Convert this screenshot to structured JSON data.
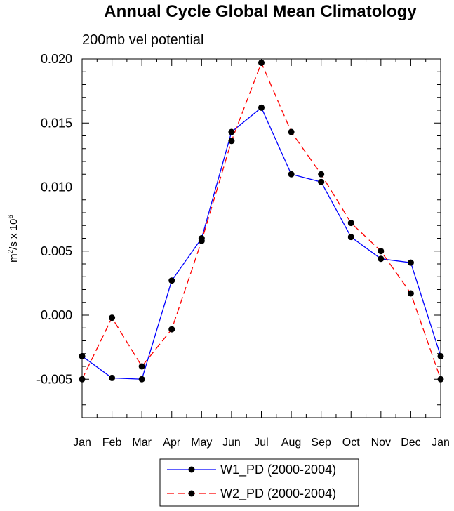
{
  "chart_data": {
    "type": "line",
    "title": "Annual Cycle Global Mean Climatology",
    "subtitle": "200mb vel potential",
    "xlabel": "",
    "ylabel": "m²/s x 10⁶",
    "ylabel_parts": {
      "base": "m",
      "exp1": "2",
      "mid": "/s x 10",
      "exp2": "6"
    },
    "ylim": [
      -0.008,
      0.02
    ],
    "yticks": [
      -0.005,
      0.0,
      0.005,
      0.01,
      0.015,
      0.02
    ],
    "ytick_labels": [
      "-0.005",
      "0.000",
      "0.005",
      "0.010",
      "0.015",
      "0.020"
    ],
    "categories": [
      "Jan",
      "Feb",
      "Mar",
      "Apr",
      "May",
      "Jun",
      "Jul",
      "Aug",
      "Sep",
      "Oct",
      "Nov",
      "Dec",
      "Jan"
    ],
    "series": [
      {
        "name": "W1_PD (2000-2004)",
        "color": "#0000ff",
        "dash": "solid",
        "values": [
          -0.0032,
          -0.0049,
          -0.005,
          0.0027,
          0.006,
          0.0143,
          0.0162,
          0.011,
          0.0104,
          0.0061,
          0.0044,
          0.0041,
          -0.0032
        ]
      },
      {
        "name": "W2_PD (2000-2004)",
        "color": "#ff0000",
        "dash": "dashed",
        "values": [
          -0.005,
          -0.0002,
          -0.004,
          -0.0011,
          0.0058,
          0.0136,
          0.0197,
          0.0143,
          0.011,
          0.0072,
          0.005,
          0.0017,
          -0.005
        ]
      }
    ],
    "marker_color": "#000000",
    "legend_position": "bottom-center",
    "grid": false
  }
}
